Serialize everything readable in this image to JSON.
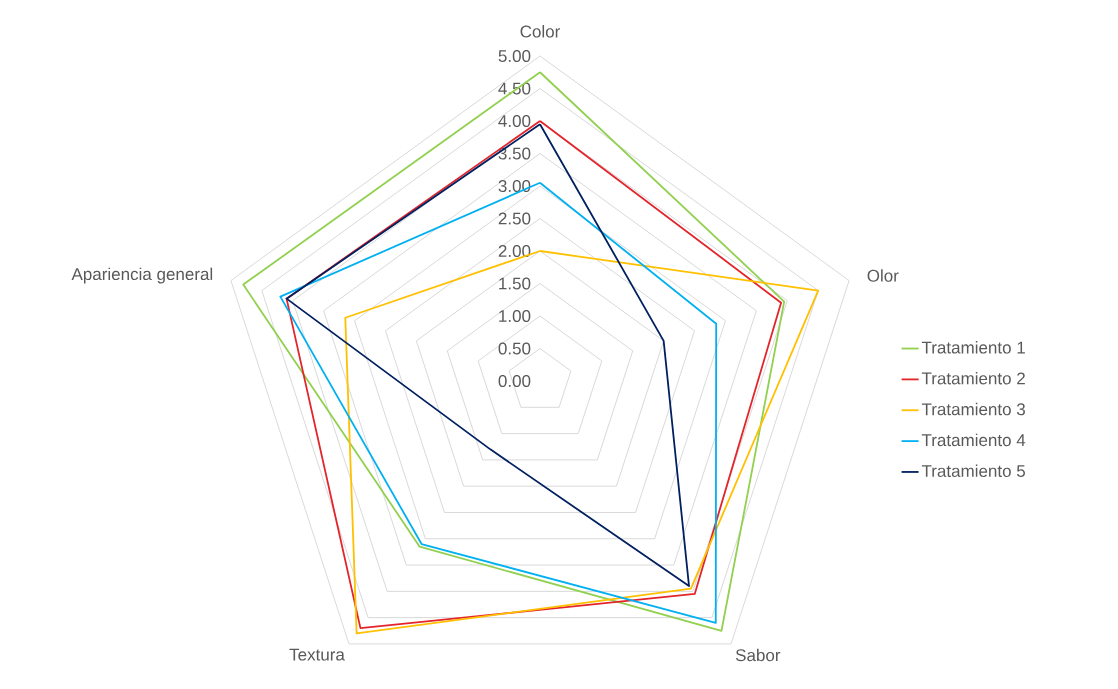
{
  "chart_data": {
    "type": "radar",
    "categories": [
      "Color",
      "Olor",
      "Sabor",
      "Textura",
      "Apariencia general"
    ],
    "series": [
      {
        "name": "Tratamiento 1",
        "color": "#92d050",
        "values": [
          4.75,
          3.95,
          4.75,
          3.15,
          4.8
        ]
      },
      {
        "name": "Tratamiento 2",
        "color": "#e3242b",
        "values": [
          4.0,
          3.9,
          4.05,
          4.7,
          4.1
        ]
      },
      {
        "name": "Tratamiento 3",
        "color": "#ffc000",
        "values": [
          2.0,
          4.5,
          3.95,
          4.8,
          3.15
        ]
      },
      {
        "name": "Tratamiento 4",
        "color": "#00b0f0",
        "values": [
          3.05,
          2.85,
          4.6,
          3.1,
          4.2
        ]
      },
      {
        "name": "Tratamiento 5",
        "color": "#002060",
        "values": [
          3.95,
          2.0,
          3.9,
          1.3,
          4.1
        ]
      }
    ],
    "ylim": [
      0,
      5
    ],
    "yticks": [
      {
        "value": 0,
        "label": "0.00"
      },
      {
        "value": 0.5,
        "label": "0.50"
      },
      {
        "value": 1,
        "label": "1.00"
      },
      {
        "value": 1.5,
        "label": "1.50"
      },
      {
        "value": 2,
        "label": "2.00"
      },
      {
        "value": 2.5,
        "label": "2.50"
      },
      {
        "value": 3,
        "label": "3.00"
      },
      {
        "value": 3.5,
        "label": "3.50"
      },
      {
        "value": 4,
        "label": "4.00"
      },
      {
        "value": 4.5,
        "label": "4.50"
      },
      {
        "value": 5,
        "label": "5.00"
      }
    ],
    "grid": true,
    "legend": "right"
  }
}
